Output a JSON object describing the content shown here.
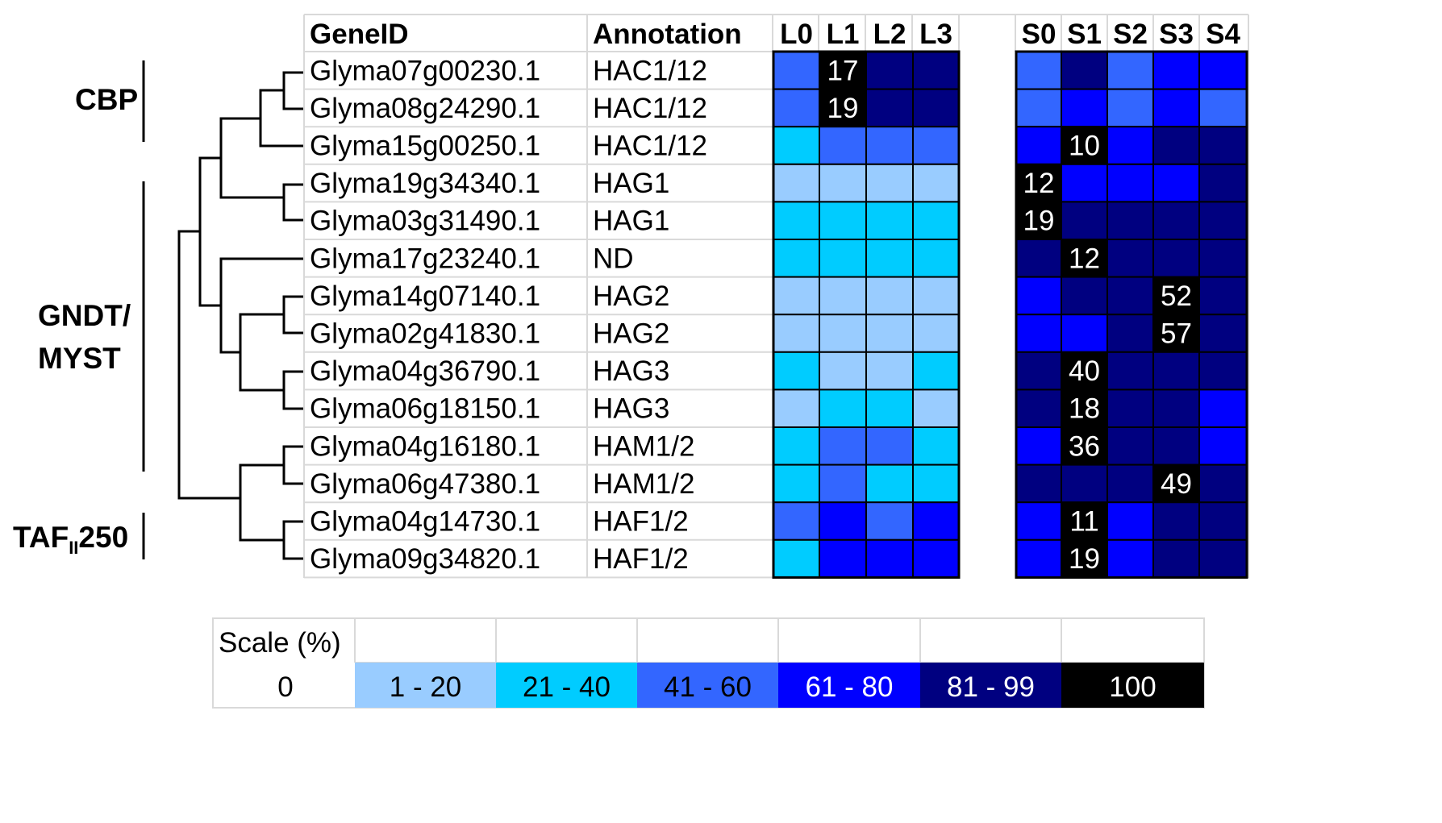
{
  "chart_data": {
    "type": "heatmap",
    "columns": {
      "gene_id_header": "GeneID",
      "annotation_header": "Annotation"
    },
    "groups": {
      "cbp": "CBP",
      "gndt_line1": "GNDT/",
      "gndt_line2": "MYST",
      "taf_main": "TAF",
      "taf_sub": "II",
      "taf_suffix": "250"
    },
    "panel_l": {
      "columns": [
        "L0",
        "L1",
        "L2",
        "L3"
      ]
    },
    "panel_s": {
      "columns": [
        "S0",
        "S1",
        "S2",
        "S3",
        "S4"
      ]
    },
    "rows": [
      {
        "gene": "Glyma07g00230.1",
        "annotation": "HAC1/12",
        "l": [
          3,
          6,
          5,
          5
        ],
        "s": [
          3,
          5,
          3,
          4,
          4
        ],
        "l_labels": [
          "",
          "17",
          "",
          ""
        ],
        "s_labels": [
          "",
          "",
          "",
          "",
          ""
        ]
      },
      {
        "gene": "Glyma08g24290.1",
        "annotation": "HAC1/12",
        "l": [
          3,
          6,
          5,
          5
        ],
        "s": [
          3,
          4,
          3,
          4,
          3
        ],
        "l_labels": [
          "",
          "19",
          "",
          ""
        ],
        "s_labels": [
          "",
          "",
          "",
          "",
          ""
        ]
      },
      {
        "gene": "Glyma15g00250.1",
        "annotation": "HAC1/12",
        "l": [
          2,
          3,
          3,
          3
        ],
        "s": [
          4,
          6,
          4,
          5,
          5
        ],
        "l_labels": [
          "",
          "",
          "",
          ""
        ],
        "s_labels": [
          "",
          "10",
          "",
          "",
          ""
        ]
      },
      {
        "gene": "Glyma19g34340.1",
        "annotation": "HAG1",
        "l": [
          1,
          1,
          1,
          1
        ],
        "s": [
          6,
          4,
          4,
          4,
          5
        ],
        "l_labels": [
          "",
          "",
          "",
          ""
        ],
        "s_labels": [
          "12",
          "",
          "",
          "",
          ""
        ]
      },
      {
        "gene": "Glyma03g31490.1",
        "annotation": "HAG1",
        "l": [
          2,
          2,
          2,
          2
        ],
        "s": [
          6,
          5,
          5,
          5,
          5
        ],
        "l_labels": [
          "",
          "",
          "",
          ""
        ],
        "s_labels": [
          "19",
          "",
          "",
          "",
          ""
        ]
      },
      {
        "gene": "Glyma17g23240.1",
        "annotation": "ND",
        "l": [
          2,
          2,
          2,
          2
        ],
        "s": [
          5,
          6,
          5,
          5,
          5
        ],
        "l_labels": [
          "",
          "",
          "",
          ""
        ],
        "s_labels": [
          "",
          "12",
          "",
          "",
          ""
        ]
      },
      {
        "gene": "Glyma14g07140.1",
        "annotation": "HAG2",
        "l": [
          1,
          1,
          1,
          1
        ],
        "s": [
          4,
          5,
          5,
          6,
          5
        ],
        "l_labels": [
          "",
          "",
          "",
          ""
        ],
        "s_labels": [
          "",
          "",
          "",
          "52",
          ""
        ]
      },
      {
        "gene": "Glyma02g41830.1",
        "annotation": "HAG2",
        "l": [
          1,
          1,
          1,
          1
        ],
        "s": [
          4,
          4,
          5,
          6,
          5
        ],
        "l_labels": [
          "",
          "",
          "",
          ""
        ],
        "s_labels": [
          "",
          "",
          "",
          "57",
          ""
        ]
      },
      {
        "gene": "Glyma04g36790.1",
        "annotation": "HAG3",
        "l": [
          2,
          1,
          1,
          2
        ],
        "s": [
          5,
          6,
          5,
          5,
          5
        ],
        "l_labels": [
          "",
          "",
          "",
          ""
        ],
        "s_labels": [
          "",
          "40",
          "",
          "",
          ""
        ]
      },
      {
        "gene": "Glyma06g18150.1",
        "annotation": "HAG3",
        "l": [
          1,
          2,
          2,
          1
        ],
        "s": [
          5,
          6,
          5,
          5,
          4
        ],
        "l_labels": [
          "",
          "",
          "",
          ""
        ],
        "s_labels": [
          "",
          "18",
          "",
          "",
          ""
        ]
      },
      {
        "gene": "Glyma04g16180.1",
        "annotation": "HAM1/2",
        "l": [
          2,
          3,
          3,
          2
        ],
        "s": [
          4,
          6,
          5,
          5,
          4
        ],
        "l_labels": [
          "",
          "",
          "",
          ""
        ],
        "s_labels": [
          "",
          "36",
          "",
          "",
          ""
        ]
      },
      {
        "gene": "Glyma06g47380.1",
        "annotation": "HAM1/2",
        "l": [
          2,
          3,
          2,
          2
        ],
        "s": [
          5,
          5,
          5,
          6,
          5
        ],
        "l_labels": [
          "",
          "",
          "",
          ""
        ],
        "s_labels": [
          "",
          "",
          "",
          "49",
          ""
        ]
      },
      {
        "gene": "Glyma04g14730.1",
        "annotation": "HAF1/2",
        "l": [
          3,
          4,
          3,
          4
        ],
        "s": [
          4,
          6,
          4,
          5,
          5
        ],
        "l_labels": [
          "",
          "",
          "",
          ""
        ],
        "s_labels": [
          "",
          "11",
          "",
          "",
          ""
        ]
      },
      {
        "gene": "Glyma09g34820.1",
        "annotation": "HAF1/2",
        "l": [
          2,
          4,
          4,
          4
        ],
        "s": [
          4,
          6,
          4,
          5,
          5
        ],
        "l_labels": [
          "",
          "",
          "",
          ""
        ],
        "s_labels": [
          "",
          "19",
          "",
          "",
          ""
        ]
      }
    ],
    "scale": {
      "title": "Scale (%)",
      "levels": [
        {
          "label": "0",
          "color": "#ffffff",
          "text_color": "#000000"
        },
        {
          "label": "1 - 20",
          "color": "#99ccff",
          "text_color": "#000000"
        },
        {
          "label": "21 - 40",
          "color": "#00ccff",
          "text_color": "#000000"
        },
        {
          "label": "41 - 60",
          "color": "#3366ff",
          "text_color": "#000000"
        },
        {
          "label": "61 - 80",
          "color": "#0000ff",
          "text_color": "#ffffff"
        },
        {
          "label": "81 - 99",
          "color": "#000080",
          "text_color": "#ffffff"
        },
        {
          "label": "100",
          "color": "#000000",
          "text_color": "#ffffff"
        }
      ]
    }
  }
}
